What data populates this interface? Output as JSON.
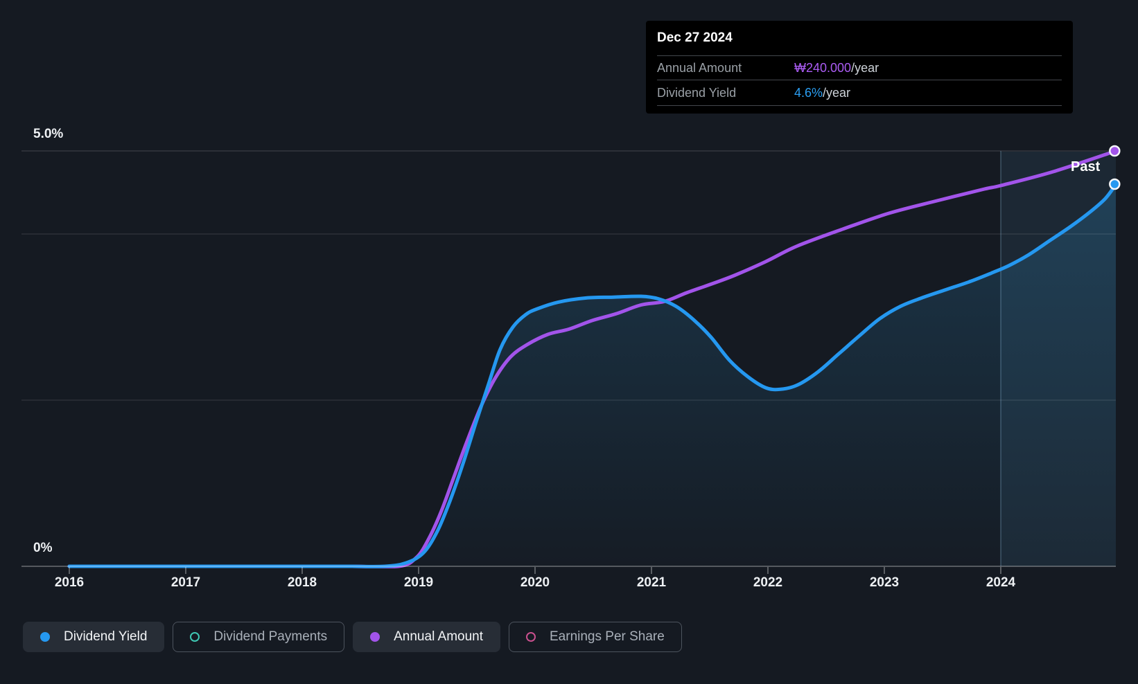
{
  "page": {
    "background": "#151a22"
  },
  "tooltip": {
    "date": "Dec 27 2024",
    "rows": [
      {
        "label": "Annual Amount",
        "value": "₩240.000",
        "suffix": "/year"
      },
      {
        "label": "Dividend Yield",
        "value": "4.6%",
        "suffix": "/year"
      }
    ]
  },
  "axes": {
    "y_top_label": "5.0%",
    "y_bottom_label": "0%",
    "years": [
      "2016",
      "2017",
      "2018",
      "2019",
      "2020",
      "2021",
      "2022",
      "2023",
      "2024"
    ]
  },
  "past_label": "Past",
  "legend": [
    {
      "label": "Dividend Yield",
      "color": "#2598f0",
      "marker": "filled",
      "active": true
    },
    {
      "label": "Dividend Payments",
      "color": "#3fc7b3",
      "marker": "outline",
      "active": false
    },
    {
      "label": "Annual Amount",
      "color": "#a254ea",
      "marker": "filled",
      "active": true
    },
    {
      "label": "Earnings Per Share",
      "color": "#c9508e",
      "marker": "outline",
      "active": false
    }
  ],
  "chart_data": {
    "type": "line",
    "title": "Dividend history",
    "x_axis": {
      "tick_years": [
        2016,
        2017,
        2018,
        2019,
        2020,
        2021,
        2022,
        2023,
        2024
      ],
      "range": [
        2016.0,
        2024.99
      ]
    },
    "y_axis_left": {
      "label_top": "5.0%",
      "label_bottom": "0%",
      "unit": "%",
      "range": [
        0,
        5
      ],
      "gridlines_pct": [
        5.0,
        4.0,
        2.0,
        0
      ]
    },
    "y_axis_right": {
      "unit": "₩/year",
      "range": [
        0,
        250
      ],
      "visible": false
    },
    "highlight_band": {
      "from_year": 2024.0,
      "to_year": 2024.99,
      "label": "Past"
    },
    "grid": true,
    "legend_position": "bottom",
    "series": [
      {
        "name": "Dividend Yield",
        "unit": "%",
        "color": "#2598f0",
        "area_fill": true,
        "end_value_label": "4.6%/year",
        "points": [
          [
            2016.0,
            0
          ],
          [
            2016.5,
            0
          ],
          [
            2017.0,
            0
          ],
          [
            2017.5,
            0
          ],
          [
            2018.0,
            0
          ],
          [
            2018.4,
            0
          ],
          [
            2018.71,
            0
          ],
          [
            2018.89,
            0.04
          ],
          [
            2019.04,
            0.16
          ],
          [
            2019.16,
            0.42
          ],
          [
            2019.27,
            0.79
          ],
          [
            2019.38,
            1.23
          ],
          [
            2019.49,
            1.72
          ],
          [
            2019.6,
            2.19
          ],
          [
            2019.7,
            2.61
          ],
          [
            2019.81,
            2.88
          ],
          [
            2019.92,
            3.03
          ],
          [
            2020.02,
            3.1
          ],
          [
            2020.2,
            3.18
          ],
          [
            2020.44,
            3.23
          ],
          [
            2020.67,
            3.24
          ],
          [
            2020.91,
            3.25
          ],
          [
            2021.06,
            3.22
          ],
          [
            2021.21,
            3.13
          ],
          [
            2021.36,
            2.97
          ],
          [
            2021.51,
            2.76
          ],
          [
            2021.67,
            2.48
          ],
          [
            2021.83,
            2.28
          ],
          [
            2021.98,
            2.15
          ],
          [
            2022.1,
            2.13
          ],
          [
            2022.25,
            2.18
          ],
          [
            2022.43,
            2.34
          ],
          [
            2022.61,
            2.56
          ],
          [
            2022.79,
            2.78
          ],
          [
            2022.96,
            2.98
          ],
          [
            2023.14,
            3.13
          ],
          [
            2023.32,
            3.23
          ],
          [
            2023.53,
            3.33
          ],
          [
            2023.74,
            3.43
          ],
          [
            2023.92,
            3.53
          ],
          [
            2024.07,
            3.62
          ],
          [
            2024.24,
            3.75
          ],
          [
            2024.42,
            3.92
          ],
          [
            2024.6,
            4.09
          ],
          [
            2024.78,
            4.28
          ],
          [
            2024.9,
            4.43
          ],
          [
            2024.99,
            4.6
          ]
        ]
      },
      {
        "name": "Annual Amount",
        "unit": "₩",
        "color": "#a254ea",
        "area_fill": false,
        "end_value_label": "₩240.000/year",
        "points": [
          [
            2016.0,
            0
          ],
          [
            2016.5,
            0
          ],
          [
            2017.0,
            0
          ],
          [
            2017.5,
            0
          ],
          [
            2018.0,
            0
          ],
          [
            2018.4,
            0
          ],
          [
            2018.83,
            0
          ],
          [
            2018.98,
            5
          ],
          [
            2019.08,
            15
          ],
          [
            2019.19,
            31
          ],
          [
            2019.3,
            51
          ],
          [
            2019.42,
            73
          ],
          [
            2019.54,
            93
          ],
          [
            2019.66,
            109
          ],
          [
            2019.79,
            121
          ],
          [
            2019.93,
            128
          ],
          [
            2020.11,
            134
          ],
          [
            2020.29,
            137
          ],
          [
            2020.49,
            142
          ],
          [
            2020.7,
            146
          ],
          [
            2020.91,
            151
          ],
          [
            2021.11,
            153
          ],
          [
            2021.3,
            158
          ],
          [
            2021.51,
            163
          ],
          [
            2021.71,
            168
          ],
          [
            2021.98,
            176
          ],
          [
            2022.25,
            185
          ],
          [
            2022.65,
            195
          ],
          [
            2023.04,
            204
          ],
          [
            2023.44,
            211
          ],
          [
            2023.86,
            218
          ],
          [
            2024.0,
            220
          ],
          [
            2024.45,
            228
          ],
          [
            2024.99,
            240
          ]
        ]
      }
    ]
  }
}
